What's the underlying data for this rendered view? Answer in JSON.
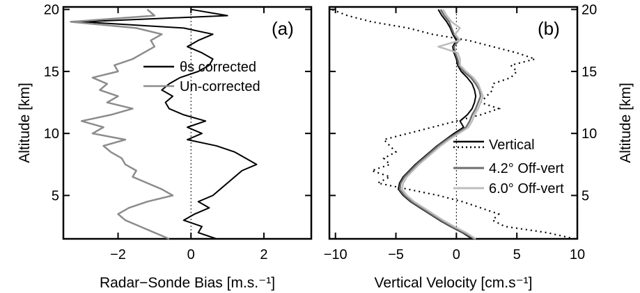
{
  "chart_data": [
    {
      "type": "line",
      "panel_label": "(a)",
      "xlabel": "Radar−Sonde Bias [m.s.⁻¹]",
      "ylabel": "Altitude [km]",
      "xlim": [
        -3.5,
        3.3
      ],
      "ylim": [
        1.5,
        20.2
      ],
      "xticks": [
        -2,
        0,
        2
      ],
      "xtick_labels": [
        "−2",
        "0",
        "2"
      ],
      "yticks": [
        5,
        10,
        15,
        20
      ],
      "ytick_labels": [
        "5",
        "10",
        "15",
        "20"
      ],
      "reference_line_x": 0,
      "legend_position": "top-right",
      "series": [
        {
          "name": "θs corrected",
          "color": "#000000",
          "y": [
            1.5,
            2,
            2.5,
            3,
            3.5,
            4,
            4.5,
            5,
            5.5,
            6,
            6.5,
            7,
            7.5,
            8,
            8.5,
            9,
            9.5,
            10,
            10.5,
            11,
            11.5,
            12,
            12.5,
            13,
            13.5,
            14,
            14.5,
            15,
            15.5,
            16,
            16.5,
            17,
            17.5,
            18,
            18.5,
            19,
            19.5,
            20
          ],
          "x": [
            0.7,
            0.2,
            0.3,
            -0.2,
            0.1,
            0.5,
            0.2,
            0.6,
            0.8,
            1.0,
            1.2,
            1.4,
            1.8,
            1.5,
            1.2,
            0.7,
            -0.1,
            0.3,
            -0.1,
            0.4,
            -0.2,
            -0.6,
            -0.7,
            -0.5,
            -0.8,
            -0.6,
            -0.3,
            0.2,
            0.5,
            0.6,
            0.3,
            -0.1,
            0.2,
            0.6,
            -0.2,
            -3.0,
            1.0,
            0.0
          ]
        },
        {
          "name": "Un-corrected",
          "color": "#8c8c8c",
          "y": [
            1.5,
            2,
            2.5,
            3,
            3.5,
            4,
            4.5,
            5,
            5.5,
            6,
            6.5,
            7,
            7.5,
            8,
            8.5,
            9,
            9.5,
            10,
            10.5,
            11,
            11.5,
            12,
            12.5,
            13,
            13.5,
            14,
            14.5,
            15,
            15.5,
            16,
            16.5,
            17,
            17.5,
            18,
            18.5,
            19,
            19.5,
            20
          ],
          "x": [
            -0.6,
            -1.0,
            -1.4,
            -1.8,
            -2.0,
            -1.7,
            -1.2,
            -0.5,
            -0.8,
            -1.2,
            -1.6,
            -1.5,
            -1.8,
            -1.9,
            -2.2,
            -2.4,
            -1.8,
            -2.7,
            -2.4,
            -3.0,
            -2.2,
            -1.6,
            -2.3,
            -2.0,
            -2.5,
            -2.3,
            -2.7,
            -2.0,
            -2.1,
            -1.6,
            -1.3,
            -1.0,
            -1.1,
            -0.8,
            -1.5,
            -3.3,
            -1.0,
            -1.2
          ]
        }
      ]
    },
    {
      "type": "line",
      "panel_label": "(b)",
      "xlabel": "Vertical Velocity [cm.s⁻¹]",
      "ylabel": "Altitude [km]",
      "xlim": [
        -10.5,
        10
      ],
      "ylim": [
        1.5,
        20.2
      ],
      "xticks": [
        -10,
        -5,
        0,
        5,
        10
      ],
      "xtick_labels": [
        "−10",
        "−5",
        "0",
        "5",
        "10"
      ],
      "yticks": [
        5,
        10,
        15,
        20
      ],
      "ytick_labels": [
        "5",
        "10",
        "15",
        "20"
      ],
      "reference_line_x": 0,
      "legend_position": "center-right",
      "series": [
        {
          "name": "Vertical",
          "color": "#000000",
          "dashed_companion": true,
          "y": [
            1.5,
            2,
            2.5,
            3,
            3.5,
            4,
            4.5,
            5,
            5.5,
            6,
            6.5,
            7,
            7.5,
            8,
            8.5,
            9,
            9.5,
            10,
            10.5,
            11,
            11.5,
            12,
            12.5,
            13,
            13.5,
            14,
            14.5,
            15,
            15.5,
            16,
            16.5,
            17,
            17.5,
            18,
            18.5,
            19,
            19.5,
            20
          ],
          "x": [
            1.3,
            0.5,
            -0.5,
            -1.4,
            -2.2,
            -3.0,
            -3.8,
            -4.4,
            -4.8,
            -4.7,
            -4.4,
            -3.9,
            -3.4,
            -2.8,
            -2.2,
            -1.6,
            -0.9,
            -0.2,
            0.6,
            0.3,
            0.9,
            1.3,
            1.5,
            1.6,
            1.5,
            1.3,
            0.9,
            0.4,
            0.1,
            0.0,
            -0.2,
            -0.3,
            0.0,
            -0.3,
            -0.5,
            -0.8,
            -1.2,
            -1.5
          ],
          "dashed_x": [
            9.8,
            7.5,
            4.0,
            3.0,
            3.5,
            2.0,
            0.5,
            -1.5,
            -4.0,
            -6.5,
            -5.5,
            -7.0,
            -5.5,
            -6.0,
            -5.0,
            -5.5,
            -6.0,
            -4.0,
            -2.0,
            0.0,
            2.0,
            3.5,
            2.0,
            2.5,
            3.0,
            3.0,
            4.5,
            5.0,
            4.5,
            6.5,
            5.0,
            3.0,
            1.0,
            -2.0,
            -4.0,
            -7.0,
            -9.0,
            -10.3
          ]
        },
        {
          "name": "4.2° Off-vert",
          "color": "#6e6e6e",
          "y": [
            1.5,
            2,
            2.5,
            3,
            3.5,
            4,
            4.5,
            5,
            5.5,
            6,
            6.5,
            7,
            7.5,
            8,
            8.5,
            9,
            9.5,
            10,
            10.5,
            11,
            11.5,
            12,
            12.5,
            13,
            13.5,
            14,
            14.5,
            15,
            15.5,
            16,
            16.5,
            17,
            17.5,
            18,
            18.5,
            19,
            19.5,
            20
          ],
          "x": [
            1.5,
            0.6,
            -0.4,
            -1.3,
            -2.1,
            -2.9,
            -3.7,
            -4.3,
            -4.7,
            -4.6,
            -4.3,
            -3.8,
            -3.3,
            -2.7,
            -2.1,
            -1.5,
            -0.8,
            0.0,
            0.8,
            1.1,
            1.3,
            1.6,
            1.8,
            2.0,
            1.9,
            1.6,
            1.2,
            0.6,
            0.2,
            0.1,
            -0.1,
            -0.2,
            0.2,
            -0.2,
            -0.4,
            -0.6,
            -1.0,
            -1.3
          ]
        },
        {
          "name": "6.0° Off-vert",
          "color": "#bdbdbd",
          "y": [
            1.5,
            2,
            2.5,
            3,
            3.5,
            4,
            4.5,
            5,
            5.5,
            6,
            6.5,
            7,
            7.5,
            8,
            8.5,
            9,
            9.5,
            10,
            10.5,
            11,
            11.5,
            12,
            12.5,
            13,
            13.5,
            14,
            14.5,
            15,
            15.5,
            16,
            16.5,
            17,
            17.5,
            18,
            18.5,
            19,
            19.5,
            20
          ],
          "x": [
            1.6,
            0.8,
            -0.2,
            -1.1,
            -1.9,
            -2.7,
            -3.5,
            -4.1,
            -4.5,
            -4.4,
            -4.1,
            -3.6,
            -3.1,
            -2.5,
            -1.9,
            -1.3,
            -0.6,
            0.2,
            1.0,
            1.3,
            1.5,
            1.8,
            2.0,
            2.2,
            2.0,
            1.8,
            1.4,
            0.8,
            0.3,
            0.3,
            0.1,
            -1.5,
            0.3,
            -0.1,
            0.3,
            -0.4,
            -0.8,
            -1.1
          ]
        }
      ]
    }
  ]
}
